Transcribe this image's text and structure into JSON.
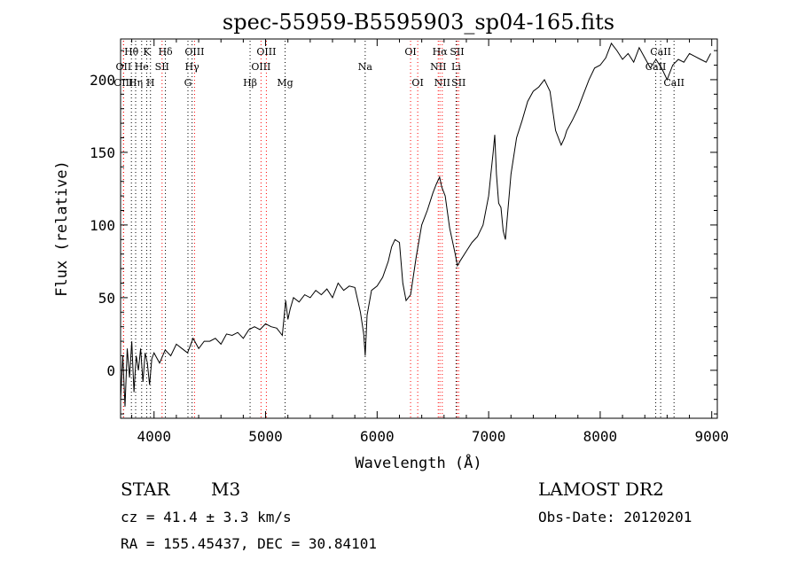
{
  "chart_data": {
    "type": "line",
    "title": "spec-55959-B5595903_sp04-165.fits",
    "xlabel": "Wavelength (Å)",
    "ylabel": "Flux (relative)",
    "xlim": [
      3700,
      9050
    ],
    "ylim": [
      -33,
      228
    ],
    "xticks": [
      4000,
      5000,
      6000,
      7000,
      8000,
      9000
    ],
    "yticks": [
      0,
      50,
      100,
      150,
      200
    ],
    "line_color": "#000000",
    "marker_line_colors": {
      "absorption": "#000000",
      "emission": "#ff0000"
    },
    "series": [
      {
        "x": [
          3700,
          3720,
          3740,
          3760,
          3780,
          3800,
          3820,
          3840,
          3860,
          3880,
          3900,
          3920,
          3940,
          3960,
          3980,
          4000,
          4050,
          4100,
          4150,
          4200,
          4250,
          4300,
          4350,
          4400,
          4450,
          4500,
          4550,
          4600,
          4650,
          4700,
          4750,
          4800,
          4850,
          4900,
          4950,
          5000,
          5050,
          5100,
          5150,
          5180,
          5200,
          5220,
          5250,
          5300,
          5350,
          5400,
          5450,
          5500,
          5550,
          5600,
          5650,
          5700,
          5750,
          5800,
          5850,
          5880,
          5893,
          5910,
          5950,
          6000,
          6050,
          6100,
          6130,
          6160,
          6200,
          6230,
          6260,
          6300,
          6350,
          6400,
          6450,
          6500,
          6530,
          6560,
          6580,
          6610,
          6650,
          6700,
          6720,
          6750,
          6800,
          6850,
          6900,
          6950,
          7000,
          7020,
          7040,
          7055,
          7070,
          7090,
          7110,
          7130,
          7150,
          7200,
          7250,
          7300,
          7350,
          7400,
          7450,
          7500,
          7550,
          7600,
          7650,
          7680,
          7700,
          7750,
          7800,
          7850,
          7900,
          7950,
          8000,
          8050,
          8100,
          8150,
          8200,
          8250,
          8300,
          8350,
          8400,
          8450,
          8500,
          8550,
          8600,
          8650,
          8700,
          8750,
          8800,
          8850,
          8900,
          8950,
          8990
        ],
        "y": [
          -20,
          10,
          -25,
          15,
          -5,
          20,
          -15,
          10,
          0,
          15,
          -8,
          12,
          5,
          -10,
          8,
          12,
          5,
          14,
          10,
          18,
          15,
          12,
          22,
          15,
          20,
          20,
          22,
          18,
          25,
          24,
          26,
          22,
          28,
          30,
          28,
          32,
          30,
          29,
          24,
          48,
          35,
          42,
          50,
          47,
          52,
          50,
          55,
          52,
          56,
          50,
          60,
          55,
          58,
          57,
          40,
          25,
          10,
          38,
          55,
          58,
          64,
          75,
          85,
          90,
          88,
          60,
          48,
          52,
          78,
          100,
          110,
          122,
          128,
          133,
          126,
          120,
          98,
          80,
          72,
          76,
          82,
          88,
          92,
          100,
          120,
          135,
          150,
          162,
          135,
          115,
          112,
          96,
          90,
          135,
          160,
          172,
          185,
          192,
          195,
          200,
          192,
          165,
          155,
          160,
          165,
          172,
          180,
          190,
          200,
          208,
          210,
          215,
          225,
          220,
          214,
          218,
          212,
          222,
          215,
          208,
          214,
          208,
          200,
          210,
          214,
          212,
          218,
          216,
          214,
          212,
          218
        ]
      }
    ],
    "lines_upper": [
      {
        "label": "Hθ",
        "x": 3797,
        "kind": "absorption"
      },
      {
        "label": "K",
        "x": 3934,
        "kind": "absorption"
      },
      {
        "label": "Hδ",
        "x": 4102,
        "kind": "absorption"
      },
      {
        "label": "OIII",
        "x": 4363,
        "kind": "emission"
      },
      {
        "label": "OIII",
        "x": 5007,
        "kind": "emission"
      },
      {
        "label": "OI",
        "x": 6300,
        "kind": "emission"
      },
      {
        "label": "Hα",
        "x": 6563,
        "kind": "emission"
      },
      {
        "label": "SII",
        "x": 6717,
        "kind": "emission"
      },
      {
        "label": "CaII",
        "x": 8542,
        "kind": "absorption"
      }
    ],
    "lines_mid": [
      {
        "label": "OII",
        "x": 3727,
        "kind": "emission"
      },
      {
        "label": "He",
        "x": 3889,
        "kind": "absorption"
      },
      {
        "label": "SII",
        "x": 4072,
        "kind": "emission"
      },
      {
        "label": "Hγ",
        "x": 4341,
        "kind": "absorption"
      },
      {
        "label": "OIII",
        "x": 4959,
        "kind": "emission"
      },
      {
        "label": "Na",
        "x": 5893,
        "kind": "absorption"
      },
      {
        "label": "NII",
        "x": 6548,
        "kind": "emission"
      },
      {
        "label": "Li",
        "x": 6708,
        "kind": "absorption"
      },
      {
        "label": "CaII",
        "x": 8498,
        "kind": "absorption"
      }
    ],
    "lines_lower": [
      {
        "label": "OIII",
        "x": 3726,
        "kind": "emission"
      },
      {
        "label": "Hη",
        "x": 3835,
        "kind": "absorption"
      },
      {
        "label": "H",
        "x": 3968,
        "kind": "absorption"
      },
      {
        "label": "G",
        "x": 4304,
        "kind": "absorption"
      },
      {
        "label": "Hβ",
        "x": 4861,
        "kind": "absorption"
      },
      {
        "label": "Mg",
        "x": 5175,
        "kind": "absorption"
      },
      {
        "label": "OI",
        "x": 6364,
        "kind": "emission"
      },
      {
        "label": "NII",
        "x": 6584,
        "kind": "emission"
      },
      {
        "label": "SII",
        "x": 6731,
        "kind": "emission"
      },
      {
        "label": "CaII",
        "x": 8662,
        "kind": "absorption"
      }
    ]
  },
  "info": {
    "object_class": "STAR",
    "subclass": "M3",
    "survey": "LAMOST DR2",
    "redshift": "cz = 41.4 ± 3.3 km/s",
    "obs_date": "Obs-Date: 20120201",
    "coords": "RA = 155.45437, DEC =  30.84101"
  }
}
